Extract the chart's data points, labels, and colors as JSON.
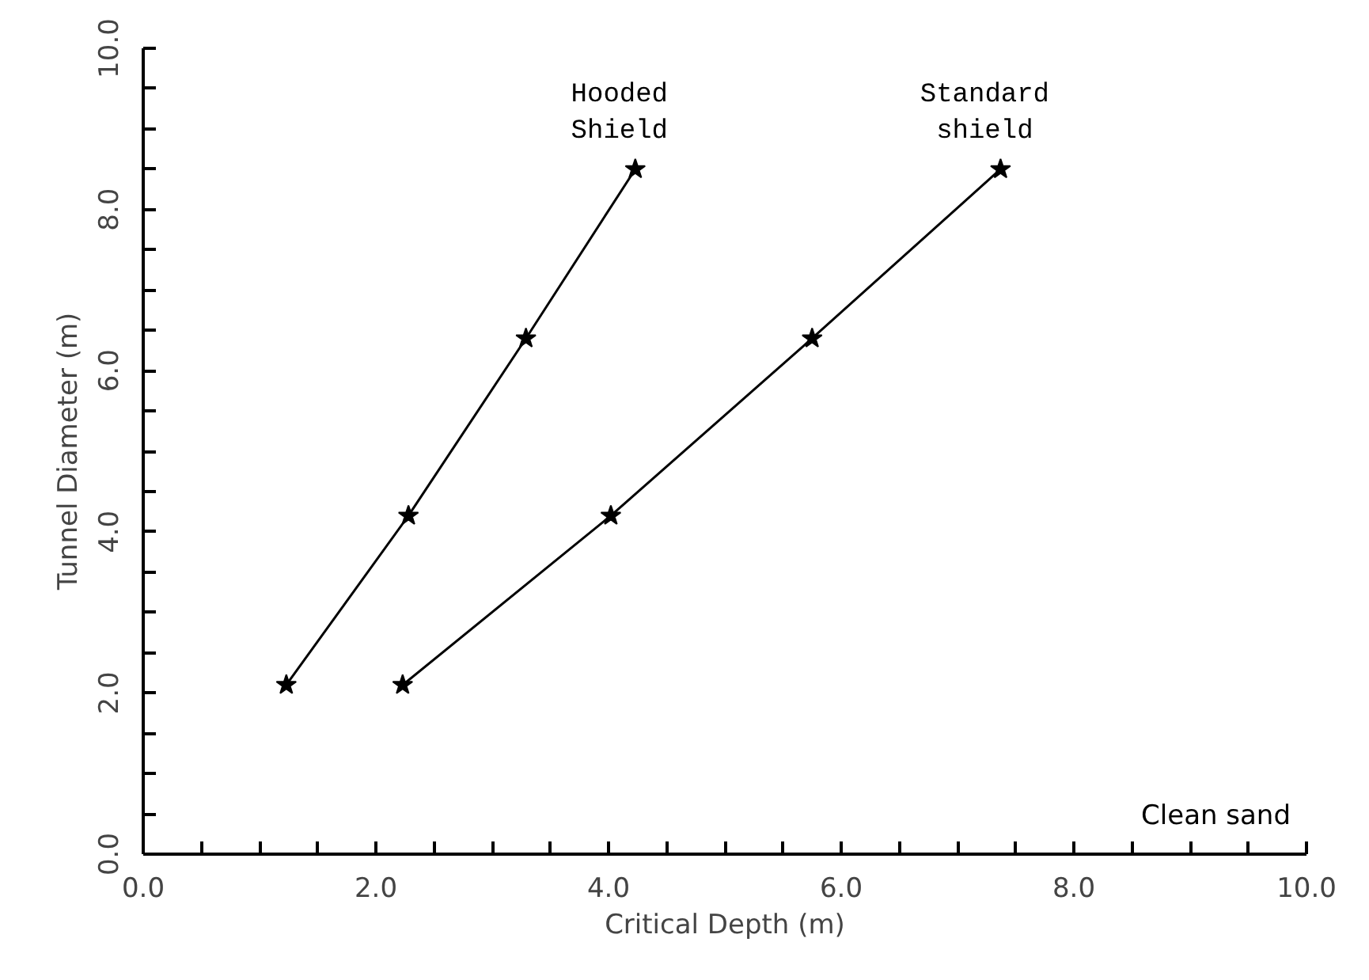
{
  "chart_data": {
    "type": "line",
    "xlabel": "Critical Depth (m)",
    "ylabel": "Tunnel Diameter (m)",
    "series": [
      {
        "name": "Hooded\nShield",
        "color": "#000000",
        "x": [
          1.23,
          2.28,
          3.29,
          4.23
        ],
        "values": [
          2.1,
          4.2,
          6.4,
          8.5
        ]
      },
      {
        "name": "Standard\nshield",
        "color": "#000000",
        "x": [
          2.23,
          4.02,
          5.75,
          7.37
        ],
        "values": [
          2.1,
          4.2,
          6.4,
          8.5
        ]
      }
    ],
    "annotations": [
      "Clean sand"
    ],
    "xlim": [
      0,
      10
    ],
    "ylim": [
      0,
      10
    ],
    "xticks": [
      {
        "value": 0,
        "label": "0.0"
      },
      {
        "value": 0.5,
        "label": null
      },
      {
        "value": 1,
        "label": null
      },
      {
        "value": 1.5,
        "label": null
      },
      {
        "value": 2,
        "label": "2.0"
      },
      {
        "value": 2.5,
        "label": null
      },
      {
        "value": 3,
        "label": null
      },
      {
        "value": 3.5,
        "label": null
      },
      {
        "value": 4,
        "label": "4.0"
      },
      {
        "value": 4.5,
        "label": null
      },
      {
        "value": 5,
        "label": null
      },
      {
        "value": 5.5,
        "label": null
      },
      {
        "value": 6,
        "label": "6.0"
      },
      {
        "value": 6.5,
        "label": null
      },
      {
        "value": 7,
        "label": null
      },
      {
        "value": 7.5,
        "label": null
      },
      {
        "value": 8,
        "label": "8.0"
      },
      {
        "value": 8.5,
        "label": null
      },
      {
        "value": 9,
        "label": null
      },
      {
        "value": 9.5,
        "label": null
      },
      {
        "value": 10,
        "label": "10.0"
      }
    ],
    "yticks": [
      {
        "value": 0,
        "label": "0.0"
      },
      {
        "value": 0.5,
        "label": null
      },
      {
        "value": 1,
        "label": null
      },
      {
        "value": 1.5,
        "label": null
      },
      {
        "value": 2,
        "label": "2.0"
      },
      {
        "value": 2.5,
        "label": null
      },
      {
        "value": 3,
        "label": null
      },
      {
        "value": 3.5,
        "label": null
      },
      {
        "value": 4,
        "label": "4.0"
      },
      {
        "value": 4.5,
        "label": null
      },
      {
        "value": 5,
        "label": null
      },
      {
        "value": 5.5,
        "label": null
      },
      {
        "value": 6,
        "label": "6.0"
      },
      {
        "value": 6.5,
        "label": null
      },
      {
        "value": 7,
        "label": null
      },
      {
        "value": 7.5,
        "label": null
      },
      {
        "value": 8,
        "label": "8.0"
      },
      {
        "value": 8.5,
        "label": null
      },
      {
        "value": 9,
        "label": null
      },
      {
        "value": 9.5,
        "label": null
      },
      {
        "value": 10,
        "label": "10.0"
      }
    ],
    "grid": false,
    "marker": "star",
    "line_style": "solid"
  }
}
